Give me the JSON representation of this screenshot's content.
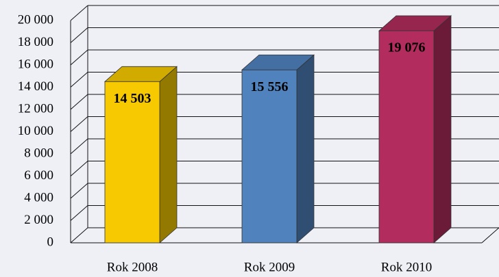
{
  "chart_data": {
    "type": "bar3d",
    "categories": [
      "Rok 2008",
      "Rok 2009",
      "Rok 2010"
    ],
    "series": [
      {
        "name": null,
        "values": [
          14503,
          15556,
          19076
        ],
        "value_labels": [
          "14 503",
          "15 556",
          "19 076"
        ],
        "colors": [
          "#f7c900",
          "#5082be",
          "#b22d5d"
        ]
      }
    ],
    "ylim": [
      0,
      20000
    ],
    "yticks": [
      0,
      {
        "value": 2000,
        "label": "2 000"
      },
      {
        "value": 4000,
        "label": "4 000"
      },
      {
        "value": 6000,
        "label": "6 000"
      },
      {
        "value": 8000,
        "label": "8 000"
      },
      {
        "value": 10000,
        "label": "10 000"
      },
      {
        "value": 12000,
        "label": "12 000"
      },
      {
        "value": 14000,
        "label": "14 000"
      },
      {
        "value": 16000,
        "label": "16 000"
      },
      {
        "value": 18000,
        "label": "18 000"
      },
      {
        "value": 20000,
        "label": "20 000"
      }
    ],
    "grid": true
  }
}
